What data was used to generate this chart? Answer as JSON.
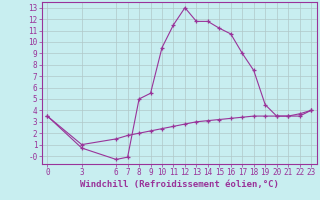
{
  "xlabel": "Windchill (Refroidissement éolien,°C)",
  "bg_color": "#c8eef0",
  "line_color": "#993399",
  "grid_color": "#b0c8c8",
  "ylim": [
    -0.7,
    13.5
  ],
  "xlim": [
    -0.5,
    23.5
  ],
  "yticks": [
    0,
    1,
    2,
    3,
    4,
    5,
    6,
    7,
    8,
    9,
    10,
    11,
    12,
    13
  ],
  "ytick_labels": [
    "-0",
    "1",
    "2",
    "3",
    "4",
    "5",
    "6",
    "7",
    "8",
    "9",
    "10",
    "11",
    "12",
    "13"
  ],
  "xticks": [
    0,
    3,
    6,
    7,
    8,
    9,
    10,
    11,
    12,
    13,
    14,
    15,
    16,
    17,
    18,
    19,
    20,
    21,
    22,
    23
  ],
  "line1_x": [
    0,
    3,
    6,
    7,
    8,
    9,
    10,
    11,
    12,
    13,
    14,
    15,
    16,
    17,
    18,
    19,
    20,
    21,
    22,
    23
  ],
  "line1_y": [
    3.5,
    0.7,
    -0.3,
    -0.1,
    5.0,
    5.5,
    9.5,
    11.5,
    13.0,
    11.8,
    11.8,
    11.2,
    10.7,
    9.0,
    7.5,
    4.5,
    3.5,
    3.5,
    3.5,
    4.0
  ],
  "line2_x": [
    0,
    3,
    6,
    7,
    8,
    9,
    10,
    11,
    12,
    13,
    14,
    15,
    16,
    17,
    18,
    19,
    20,
    21,
    22,
    23
  ],
  "line2_y": [
    3.5,
    1.0,
    1.5,
    1.8,
    2.0,
    2.2,
    2.4,
    2.6,
    2.8,
    3.0,
    3.1,
    3.2,
    3.3,
    3.4,
    3.5,
    3.5,
    3.5,
    3.5,
    3.7,
    4.0
  ],
  "tick_fontsize": 5.5,
  "xlabel_fontsize": 6.5
}
